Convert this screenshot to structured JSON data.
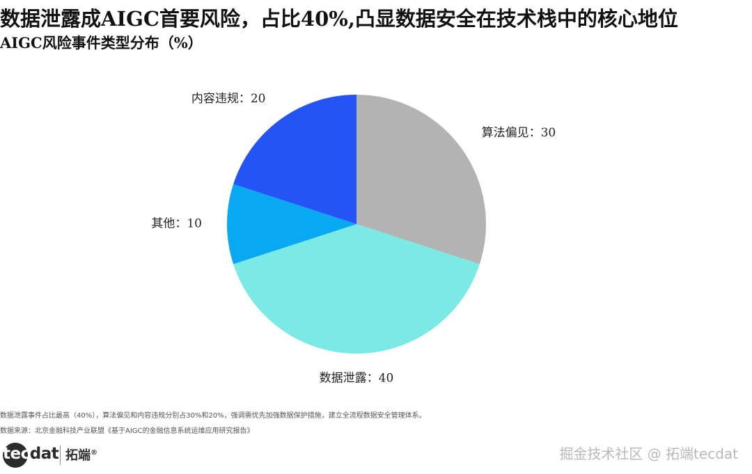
{
  "header": {
    "title": "数据泄露成AIGC首要风险，占比40%,凸显数据安全在技术栈中的核心地位",
    "subtitle": "AIGC风险事件类型分布（%）"
  },
  "chart_data": {
    "type": "pie",
    "start_angle_deg": 0,
    "direction": "clockwise",
    "slices": [
      {
        "label": "算法偏见：30",
        "category": "算法偏见",
        "value": 30,
        "color": "#b3b3b3"
      },
      {
        "label": "数据泄露：40",
        "category": "数据泄露",
        "value": 40,
        "color": "#7be9e4"
      },
      {
        "label": "其他：10",
        "category": "其他",
        "value": 10,
        "color": "#08a9f2"
      },
      {
        "label": "内容违规：20",
        "category": "内容违规",
        "value": 20,
        "color": "#2454f5"
      }
    ]
  },
  "footer": {
    "note": "数据泄露事件占比最高（40%），算法偏见和内容违规分别占30%和20%，强调需优先加强数据保护措施，建立全流程数据安全管理体系。",
    "source": "数据来源：北京金融科技产业联盟《基于AIGC的金融信息系统运维应用研究报告》",
    "logo_text_a": "tec",
    "logo_text_b": "dat",
    "logo_cn": "拓端",
    "logo_reg": "®",
    "watermark": "掘金技术社区 @ 拓端tecdat"
  }
}
